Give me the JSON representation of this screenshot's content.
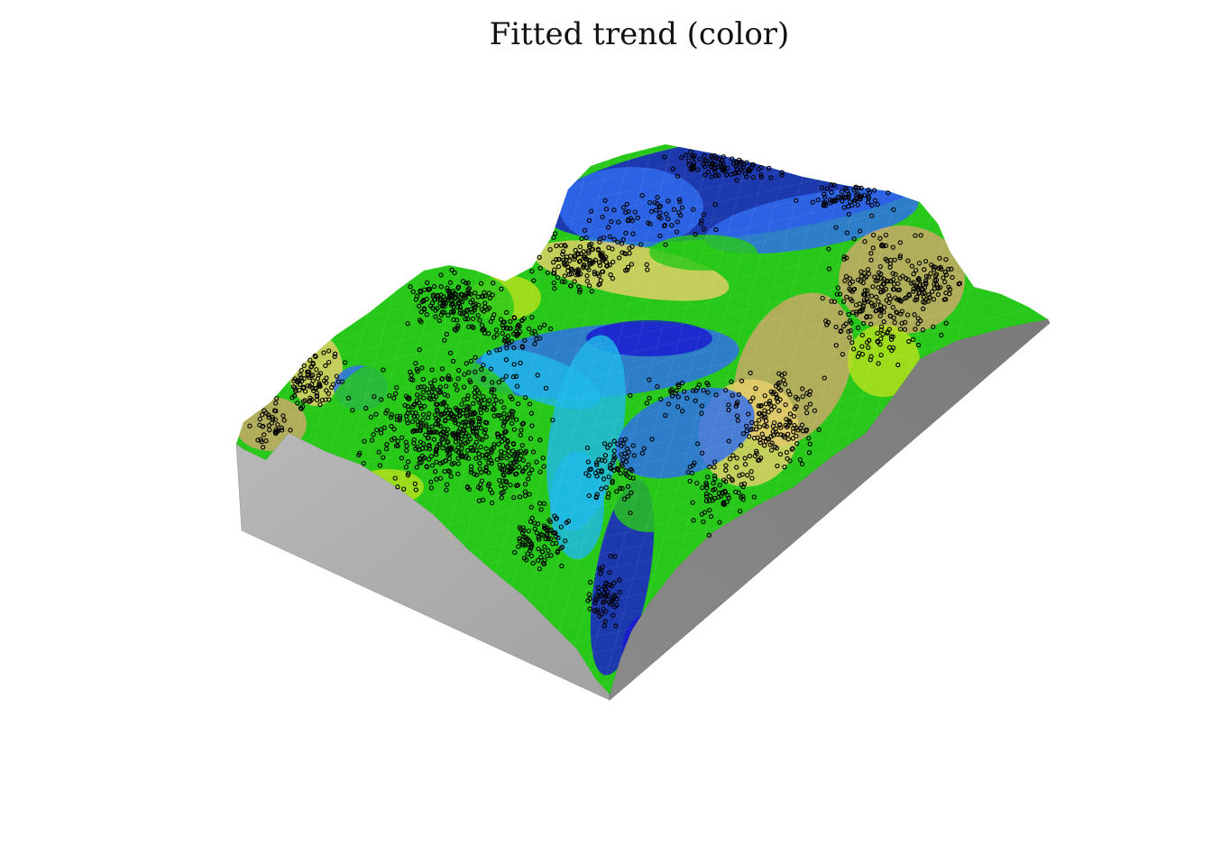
{
  "chart_data": {
    "type": "surface",
    "title": "Fitted trend (color)",
    "axes_visible": false,
    "grid": false,
    "legend": "none",
    "surface_colormap": [
      "#1a1ad0",
      "#2f6cf0",
      "#1eb8e8",
      "#28c81a",
      "#b6e01c",
      "#e6cf6a",
      "#cfa86a"
    ],
    "side_wall_color": "#a9a9a9",
    "marker_color": "#000000",
    "marker_style": "hollow-circle",
    "observation_points_shown": true
  }
}
